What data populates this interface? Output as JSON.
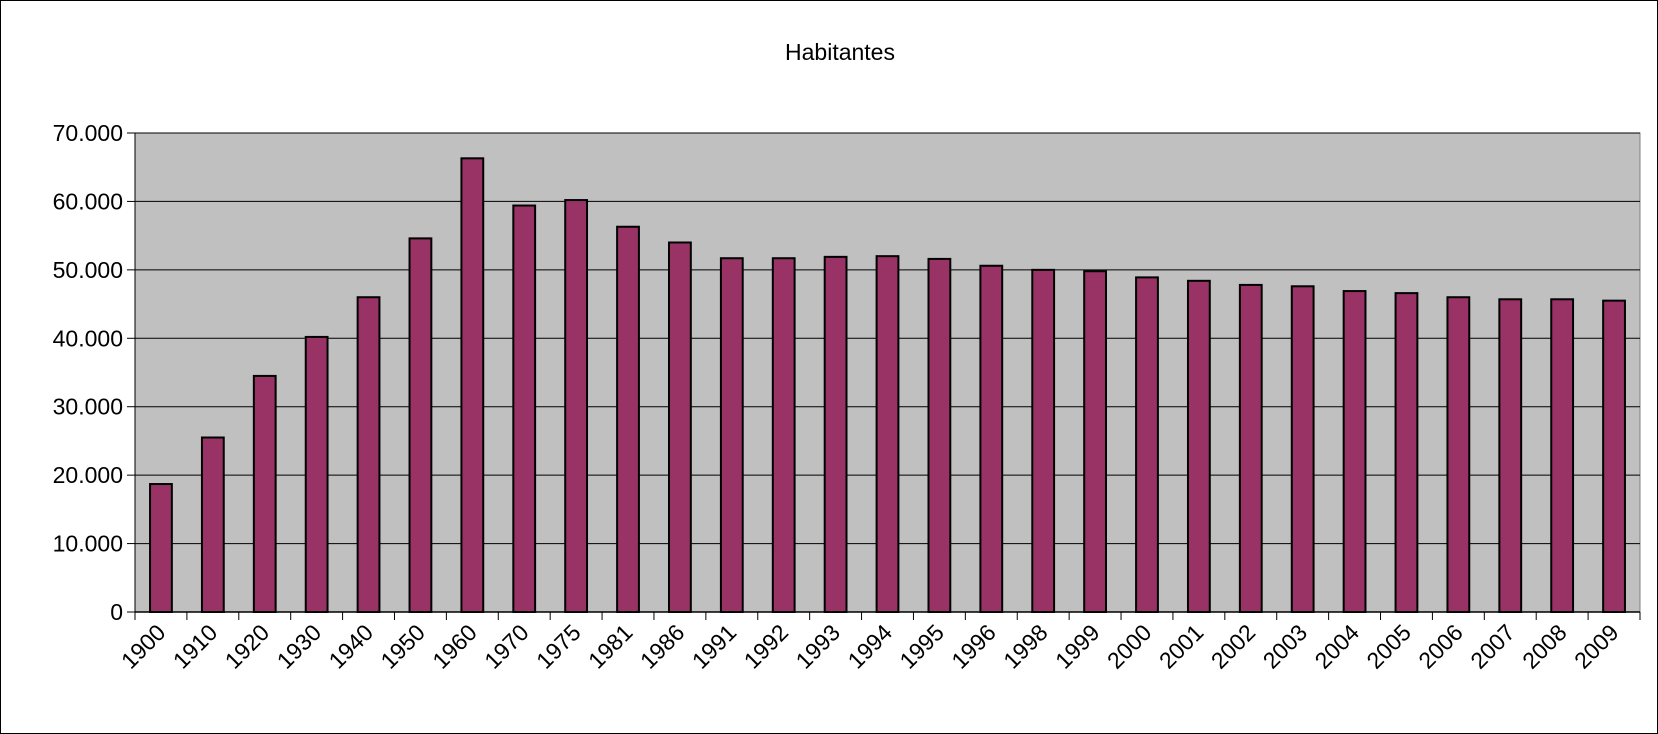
{
  "chart_data": {
    "type": "bar",
    "title": "Habitantes",
    "xlabel": "",
    "ylabel": "",
    "ylim": [
      0,
      70000
    ],
    "yticks": [
      0,
      10000,
      20000,
      30000,
      40000,
      50000,
      60000,
      70000
    ],
    "ytick_labels": [
      "0",
      "10.000",
      "20.000",
      "30.000",
      "40.000",
      "50.000",
      "60.000",
      "70.000"
    ],
    "grid": true,
    "legend": "none",
    "categories": [
      "1900",
      "1910",
      "1920",
      "1930",
      "1940",
      "1950",
      "1960",
      "1970",
      "1975",
      "1981",
      "1986",
      "1991",
      "1992",
      "1993",
      "1994",
      "1995",
      "1996",
      "1998",
      "1999",
      "2000",
      "2001",
      "2002",
      "2003",
      "2004",
      "2005",
      "2006",
      "2007",
      "2008",
      "2009"
    ],
    "values": [
      18700,
      25500,
      34500,
      40200,
      46000,
      54600,
      66300,
      59400,
      60200,
      56300,
      54000,
      51700,
      51700,
      51900,
      52000,
      51600,
      50600,
      50000,
      49800,
      48900,
      48400,
      47800,
      47600,
      46900,
      46600,
      46000,
      45700,
      45700,
      45500
    ],
    "colors": {
      "bar_fill": "#993366",
      "bar_stroke": "#000000",
      "plot_background": "#c0c0c0",
      "gridline": "#000000"
    }
  }
}
